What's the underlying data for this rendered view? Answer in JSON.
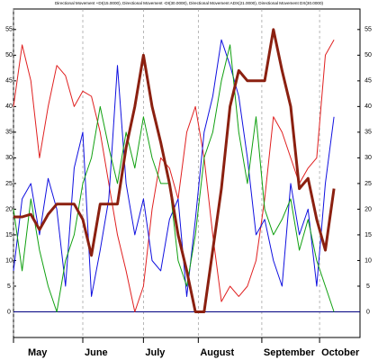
{
  "chart_data": {
    "type": "line",
    "title": "Directional Movement +DI(15.0000), Directional Movement -DI(30.0000), Directional Movement ADX(21.0000), Directional Movement DX(30.0000)",
    "x": [
      0,
      3,
      6,
      9,
      12,
      15,
      18,
      21,
      24,
      27,
      30,
      33,
      36,
      39,
      42,
      45,
      48,
      51,
      54,
      57,
      60,
      63,
      66,
      69,
      72,
      75,
      78,
      81,
      84,
      87,
      90,
      93,
      96,
      99,
      102,
      105,
      108,
      111
    ],
    "xlim": [
      0,
      120
    ],
    "xticks": [
      {
        "value": 0,
        "label": "May"
      },
      {
        "value": 24,
        "label": "June"
      },
      {
        "value": 45,
        "label": "July"
      },
      {
        "value": 64,
        "label": "August"
      },
      {
        "value": 86,
        "label": "September"
      },
      {
        "value": 106,
        "label": "October"
      }
    ],
    "ylim": [
      -5,
      59
    ],
    "yticks": [
      0,
      5,
      10,
      15,
      20,
      25,
      30,
      35,
      40,
      45,
      50,
      55
    ],
    "grid": true,
    "series": [
      {
        "color": "#e02020",
        "width": 1,
        "values": [
          40,
          52,
          45,
          30,
          40,
          48,
          46,
          40,
          43,
          42,
          35,
          25,
          15,
          8,
          0,
          5,
          20,
          30,
          28,
          22,
          35,
          40,
          30,
          15,
          2,
          5,
          3,
          5,
          10,
          22,
          38,
          35,
          30,
          25,
          28,
          30,
          50,
          53
        ]
      },
      {
        "color": "#1010e0",
        "width": 1,
        "values": [
          8,
          22,
          25,
          15,
          26,
          20,
          5,
          28,
          35,
          3,
          12,
          22,
          48,
          25,
          15,
          22,
          10,
          8,
          18,
          22,
          3,
          18,
          35,
          42,
          53,
          48,
          42,
          30,
          15,
          18,
          10,
          5,
          25,
          15,
          20,
          5,
          25,
          38
        ]
      },
      {
        "color": "#10a010",
        "width": 1,
        "values": [
          20,
          8,
          22,
          12,
          5,
          0,
          10,
          15,
          25,
          30,
          40,
          32,
          25,
          35,
          28,
          38,
          30,
          25,
          25,
          10,
          5,
          15,
          30,
          35,
          45,
          52,
          35,
          25,
          38,
          20,
          15,
          18,
          22,
          12,
          18,
          10,
          5,
          0
        ]
      },
      {
        "color": "#8b2010",
        "width": 3,
        "values": [
          18.5,
          18.5,
          19,
          16,
          19,
          21,
          21,
          21,
          18,
          11,
          21,
          21,
          21,
          32,
          40,
          50,
          40,
          33,
          25,
          15,
          8,
          0,
          0,
          12,
          24,
          40,
          47,
          45,
          45,
          45,
          55,
          47,
          40,
          24,
          26,
          18,
          12,
          24
        ]
      }
    ]
  }
}
